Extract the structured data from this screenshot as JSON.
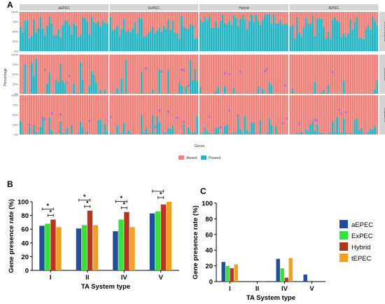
{
  "panels": {
    "a": "A",
    "b": "B",
    "c": "C"
  },
  "colors": {
    "absent": "#f08078",
    "present": "#22b5c4",
    "strip": "#d4d4d4",
    "aEPEC": "#1f4e9c",
    "ExPEC": "#35e335",
    "Hybrid": "#b5361c",
    "tEPEC": "#f2a11f"
  },
  "chart_data": [
    {
      "type": "heatmap",
      "panel": "A",
      "column_facets": [
        "aEPEC",
        "ExPEC",
        "Hybrid",
        "tEPEC"
      ],
      "row_facets": [
        "chromosome",
        "plasmid",
        "unplaced"
      ],
      "y_ticks": [
        "0%",
        "25%",
        "50%",
        "75%",
        "100%"
      ],
      "xlabel": "Genes",
      "ylabel": "Percentage",
      "legend": [
        "Absent",
        "Present"
      ],
      "legend_placement": "bottom"
    },
    {
      "type": "bar",
      "panel": "B",
      "categories": [
        "I",
        "II",
        "IV",
        "V"
      ],
      "series": [
        {
          "name": "aEPEC",
          "values": [
            65,
            61,
            57,
            83
          ]
        },
        {
          "name": "ExPEC",
          "values": [
            68,
            66,
            74,
            86
          ]
        },
        {
          "name": "Hybrid",
          "values": [
            74,
            87,
            85,
            96
          ]
        },
        {
          "name": "tEPEC",
          "values": [
            63,
            66,
            63,
            100
          ]
        }
      ],
      "xlabel": "TA System type",
      "ylabel": "Gene presence rate (%)",
      "yticks": [
        "0",
        "20",
        "40",
        "60",
        "80",
        "100"
      ],
      "ylim": [
        0,
        100
      ],
      "significance_marker": "*"
    },
    {
      "type": "bar",
      "panel": "C",
      "categories": [
        "I",
        "II",
        "IV",
        "V"
      ],
      "series": [
        {
          "name": "aEPEC",
          "values": [
            25,
            0,
            29,
            9
          ]
        },
        {
          "name": "ExPEC",
          "values": [
            20,
            0,
            17,
            0
          ]
        },
        {
          "name": "Hybrid",
          "values": [
            17,
            0,
            5,
            0
          ]
        },
        {
          "name": "tEPEC",
          "values": [
            22,
            1,
            30,
            0
          ]
        }
      ],
      "xlabel": "TA System type",
      "ylabel": "Gene presence rate (%)",
      "yticks": [
        "0",
        "20",
        "40",
        "60",
        "80",
        "100"
      ],
      "ylim": [
        0,
        100
      ],
      "legend_placement": "right"
    }
  ]
}
